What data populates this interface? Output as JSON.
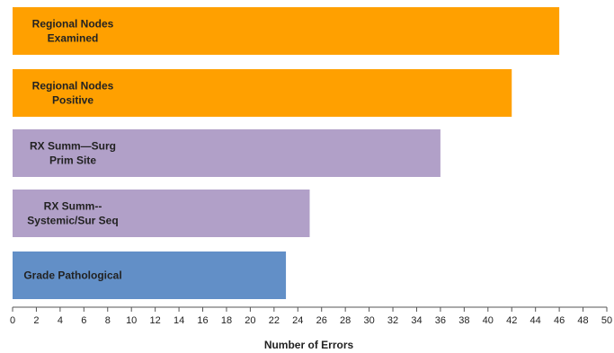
{
  "chart_data": {
    "type": "bar",
    "orientation": "horizontal",
    "categories": [
      [
        "Regional Nodes",
        "Examined"
      ],
      [
        "Regional Nodes",
        "Positive"
      ],
      [
        "RX Summ—Surg",
        "Prim Site"
      ],
      [
        "RX Summ--",
        "Systemic/Sur Seq"
      ],
      [
        "Grade Pathological"
      ]
    ],
    "values": [
      46,
      42,
      36,
      25,
      23
    ],
    "colors": [
      "#ffa000",
      "#ffa000",
      "#b1a0c8",
      "#b1a0c8",
      "#628fc7"
    ],
    "xlabel": "Number of Errors",
    "xlim": [
      0,
      50
    ],
    "xticks": [
      0,
      2,
      4,
      6,
      8,
      10,
      12,
      14,
      16,
      18,
      20,
      22,
      24,
      26,
      28,
      30,
      32,
      34,
      36,
      38,
      40,
      42,
      44,
      46,
      48,
      50
    ],
    "grid": false
  }
}
